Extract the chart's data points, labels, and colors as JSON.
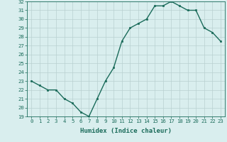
{
  "xlabel": "Humidex (Indice chaleur)",
  "ylabel": "",
  "x": [
    0,
    1,
    2,
    3,
    4,
    5,
    6,
    7,
    8,
    9,
    10,
    11,
    12,
    13,
    14,
    15,
    16,
    17,
    18,
    19,
    20,
    21,
    22,
    23
  ],
  "y": [
    23.0,
    22.5,
    22.0,
    22.0,
    21.0,
    20.5,
    19.5,
    19.0,
    21.0,
    23.0,
    24.5,
    27.5,
    29.0,
    29.5,
    30.0,
    31.5,
    31.5,
    32.0,
    31.5,
    31.0,
    31.0,
    29.0,
    28.5,
    27.5
  ],
  "ylim": [
    19,
    32
  ],
  "xlim": [
    -0.5,
    23.5
  ],
  "yticks": [
    19,
    20,
    21,
    22,
    23,
    24,
    25,
    26,
    27,
    28,
    29,
    30,
    31,
    32
  ],
  "xticks": [
    0,
    1,
    2,
    3,
    4,
    5,
    6,
    7,
    8,
    9,
    10,
    11,
    12,
    13,
    14,
    15,
    16,
    17,
    18,
    19,
    20,
    21,
    22,
    23
  ],
  "line_color": "#1a6b5a",
  "marker": "s",
  "marker_size": 1.8,
  "line_width": 1.0,
  "bg_color": "#d9eeee",
  "grid_color": "#b8d0d0",
  "tick_label_fontsize": 5.2,
  "xlabel_fontsize": 6.5
}
